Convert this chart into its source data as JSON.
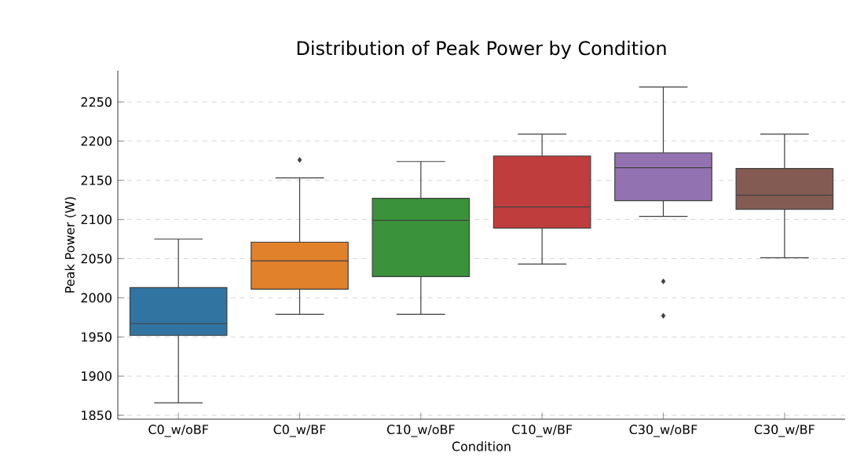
{
  "chart_data": {
    "type": "box",
    "title": "Distribution of Peak Power by Condition",
    "xlabel": "Condition",
    "ylabel": "Peak Power (W)",
    "categories": [
      "C0_w/oBF",
      "C0_w/BF",
      "C10_w/oBF",
      "C10_w/BF",
      "C30_w/oBF",
      "C30_w/BF"
    ],
    "colors": [
      "#3274a1",
      "#e1812c",
      "#3a923a",
      "#c03d3e",
      "#9372b2",
      "#845b53"
    ],
    "boxes": [
      {
        "low": 1866,
        "q1": 1952,
        "median": 1967,
        "q3": 2013,
        "high": 2075
      },
      {
        "low": 1979,
        "q1": 2011,
        "median": 2047,
        "q3": 2071,
        "high": 2153,
        "outliers": [
          2176
        ]
      },
      {
        "low": 1979,
        "q1": 2027,
        "median": 2099,
        "q3": 2127,
        "high": 2174
      },
      {
        "low": 2043,
        "q1": 2089,
        "median": 2116,
        "q3": 2181,
        "high": 2209
      },
      {
        "low": 2104,
        "q1": 2124,
        "median": 2166,
        "q3": 2185,
        "high": 2269,
        "outliers": [
          2021,
          1977
        ]
      },
      {
        "low": 2051,
        "q1": 2113,
        "median": 2131,
        "q3": 2165,
        "high": 2209
      }
    ],
    "ylim": [
      1845,
      2290
    ],
    "yticks": [
      1850,
      1900,
      1950,
      2000,
      2050,
      2100,
      2150,
      2200,
      2250
    ],
    "grid": "y",
    "marker": "diamond"
  }
}
